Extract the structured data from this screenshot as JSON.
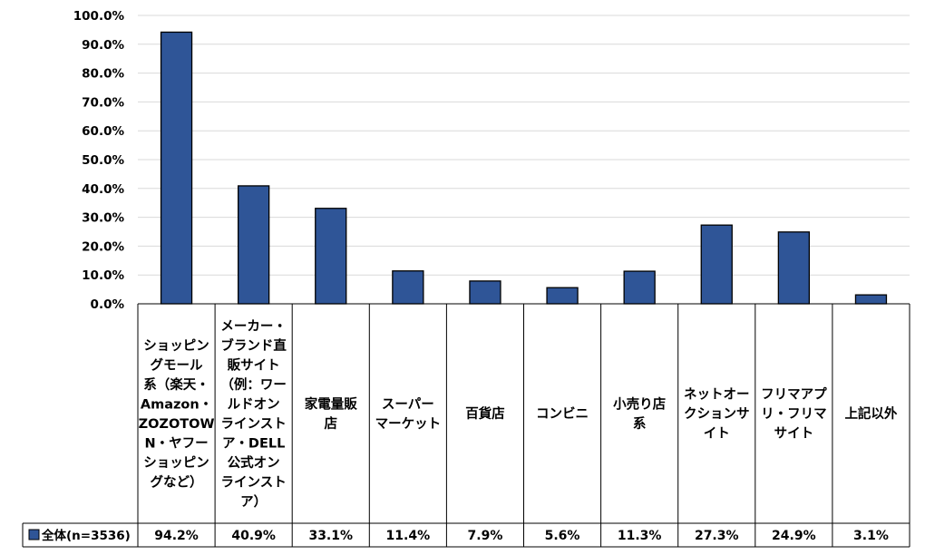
{
  "chart_data": {
    "type": "bar",
    "categories": [
      [
        "ショッピン",
        "グモール",
        "系（楽天・",
        "Amazon・",
        "ZOZOTOW",
        "N・ヤフー",
        "ショッピン",
        "グなど）"
      ],
      [
        "メーカー・",
        "ブランド直",
        "販サイト",
        "（例：ワー",
        "ルドオン",
        "ラインスト",
        "ア・DELL",
        "公式オン",
        "ラインスト",
        "ア）"
      ],
      [
        "家電量販",
        "店"
      ],
      [
        "スーパー",
        "マーケット"
      ],
      [
        "百貨店"
      ],
      [
        "コンビニ"
      ],
      [
        "小売り店",
        "系"
      ],
      [
        "ネットオー",
        "クションサ",
        "イト"
      ],
      [
        "フリマアプ",
        "リ・フリマ",
        "サイト"
      ],
      [
        "上記以外"
      ]
    ],
    "series": [
      {
        "name": "全体(n=3536)",
        "values": [
          94.2,
          40.9,
          33.1,
          11.4,
          7.9,
          5.6,
          11.3,
          27.3,
          24.9,
          3.1
        ],
        "labels": [
          "94.2%",
          "40.9%",
          "33.1%",
          "11.4%",
          "7.9%",
          "5.6%",
          "11.3%",
          "27.3%",
          "24.9%",
          "3.1%"
        ]
      }
    ],
    "y_ticks": [
      "0.0%",
      "10.0%",
      "20.0%",
      "30.0%",
      "40.0%",
      "50.0%",
      "60.0%",
      "70.0%",
      "80.0%",
      "90.0%",
      "100.0%"
    ],
    "ylim": [
      0,
      100
    ],
    "grid": true,
    "legend": "data-table-left",
    "colors": {
      "bar_fill": "#2F5597",
      "bar_stroke": "#000000",
      "grid": "#D9D9D9",
      "table_line": "#000000"
    }
  }
}
